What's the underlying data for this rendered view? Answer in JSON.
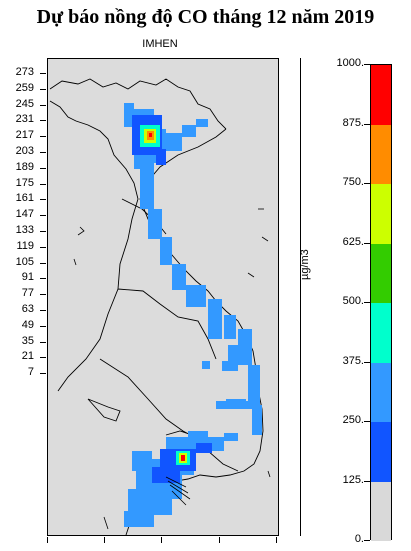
{
  "title": "Dự báo nồng độ CO tháng 12 năm 2019",
  "subtitle": "IMHEN",
  "y_axis_ticks": [
    "273",
    "259",
    "245",
    "231",
    "217",
    "203",
    "189",
    "175",
    "161",
    "147",
    "133",
    "119",
    "105",
    "91",
    "77",
    "63",
    "49",
    "35",
    "21",
    "7"
  ],
  "colorbar": {
    "unit": "µg/m3",
    "labels": [
      "1000.",
      "875.",
      "750.",
      "625.",
      "500.",
      "375.",
      "250.",
      "125.",
      "0."
    ],
    "colors": [
      "#ff0000",
      "#ff8c00",
      "#ccff00",
      "#33cc00",
      "#00ffcc",
      "#3399ff",
      "#1155ff",
      "#d9d9d9"
    ]
  },
  "map": {
    "land_color": "#dcdcdc",
    "low_color": "#3399ff",
    "mid_color": "#1155ff",
    "hotspots": [
      "hanoi",
      "hochiminh"
    ]
  }
}
